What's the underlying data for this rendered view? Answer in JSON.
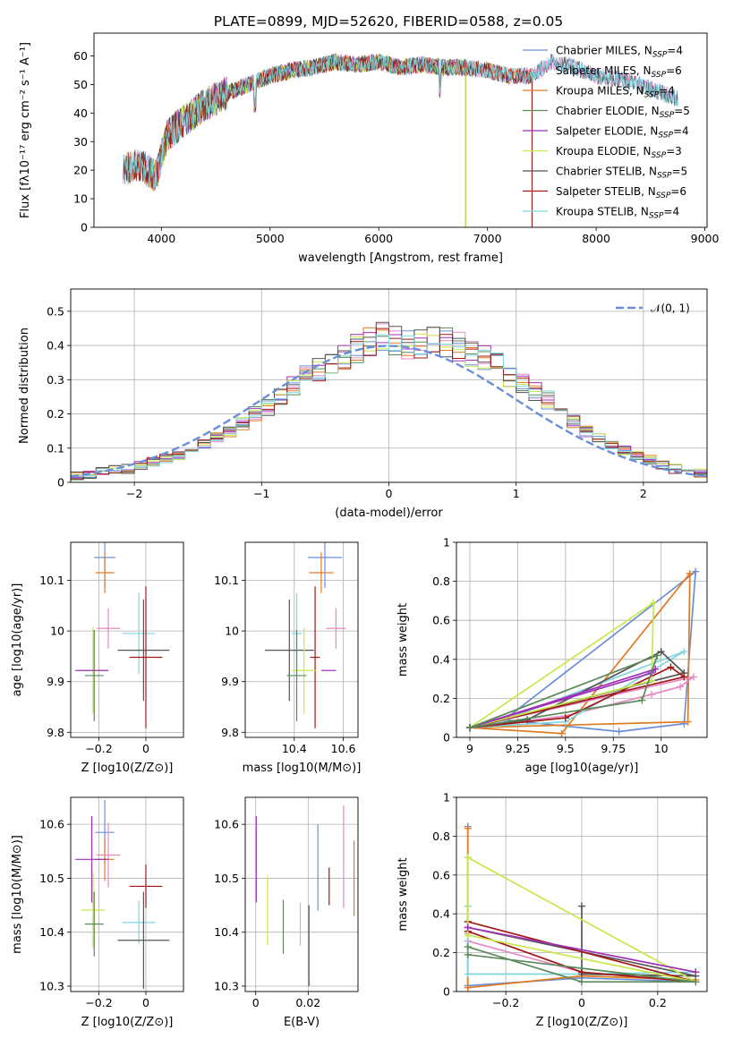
{
  "figure_title": "PLATE=0899, MJD=52620, FIBERID=0588, z=0.05",
  "colors": {
    "Chabrier MILES": "#6a8fd8",
    "Salpeter MILES": "#e68ac5",
    "Kroupa MILES": "#e07b22",
    "Chabrier ELODIE": "#5a8a5a",
    "Salpeter ELODIE": "#a030b8",
    "Kroupa ELODIE": "#c8e84a",
    "Chabrier STELIB": "#555555",
    "Salpeter STELIB": "#a01818",
    "Kroupa STELIB": "#7fd6dc"
  },
  "chart_data": [
    {
      "id": "spectrum",
      "type": "line",
      "title": "PLATE=0899, MJD=52620, FIBERID=0588, z=0.05",
      "xlabel": "wavelength [Angstrom, rest frame]",
      "ylabel": "Flux [fλ10⁻¹⁷ erg cm⁻² s⁻¹ A⁻¹]",
      "xlim": [
        3380,
        9020
      ],
      "ylim": [
        0,
        68
      ],
      "xticks": [
        4000,
        5000,
        6000,
        7000,
        8000,
        9000
      ],
      "yticks": [
        0,
        10,
        20,
        30,
        40,
        50,
        60
      ],
      "grid": false,
      "legend_position": "upper right",
      "series": [
        {
          "name": "Chabrier MILES",
          "legend_label": "Chabrier MILES, N_SSP=4",
          "x_range": [
            3650,
            8750
          ]
        },
        {
          "name": "Salpeter MILES",
          "legend_label": "Salpeter MILES, N_SSP=6",
          "x_range": [
            3650,
            8750
          ]
        },
        {
          "name": "Kroupa MILES",
          "legend_label": "Kroupa MILES, N_SSP=4",
          "x_range": [
            3650,
            7410
          ]
        },
        {
          "name": "Chabrier ELODIE",
          "legend_label": "Chabrier ELODIE, N_SSP=5",
          "x_range": [
            3900,
            6800
          ]
        },
        {
          "name": "Salpeter ELODIE",
          "legend_label": "Salpeter ELODIE, N_SSP=4",
          "x_range": [
            3900,
            6800
          ]
        },
        {
          "name": "Kroupa ELODIE",
          "legend_label": "Kroupa ELODIE, N_SSP=3",
          "x_range": [
            3900,
            6800
          ]
        },
        {
          "name": "Chabrier STELIB",
          "legend_label": "Chabrier STELIB, N_SSP=5",
          "x_range": [
            3650,
            8750
          ]
        },
        {
          "name": "Salpeter STELIB",
          "legend_label": "Salpeter STELIB, N_SSP=6",
          "x_range": [
            3650,
            7410
          ]
        },
        {
          "name": "Kroupa STELIB",
          "legend_label": "Kroupa STELIB, N_SSP=4",
          "x_range": [
            3650,
            8750
          ]
        }
      ],
      "continuum": {
        "x": [
          3650,
          3800,
          3950,
          4050,
          4200,
          4400,
          4600,
          4800,
          5000,
          5200,
          5400,
          5600,
          5800,
          6000,
          6200,
          6400,
          6600,
          6800,
          7000,
          7200,
          7400,
          7600,
          7800,
          8000,
          8200,
          8400,
          8600,
          8750
        ],
        "y": [
          20,
          22,
          18,
          32,
          37,
          43,
          47,
          50,
          53,
          55,
          56,
          58,
          57,
          58,
          56,
          57,
          56,
          56,
          55,
          53,
          53,
          58,
          56,
          53,
          52,
          50,
          47,
          45
        ]
      }
    },
    {
      "id": "residual-histogram",
      "type": "histogram",
      "xlabel": "(data-model)/error",
      "ylabel": "Normed distribution",
      "xlim": [
        -2.5,
        2.5
      ],
      "ylim": [
        0,
        0.565
      ],
      "xticks": [
        -2,
        -1,
        0,
        1,
        2
      ],
      "yticks": [
        0.0,
        0.1,
        0.2,
        0.3,
        0.4,
        0.5
      ],
      "grid": true,
      "legend_position": "upper right",
      "legend_label": "𝒩(0, 1)",
      "bin_width": 0.1,
      "bin_start": -2.5,
      "series_values": {
        "base": [
          0.02,
          0.025,
          0.03,
          0.035,
          0.04,
          0.05,
          0.06,
          0.07,
          0.08,
          0.09,
          0.11,
          0.13,
          0.15,
          0.17,
          0.2,
          0.22,
          0.25,
          0.28,
          0.31,
          0.33,
          0.35,
          0.37,
          0.39,
          0.41,
          0.42,
          0.41,
          0.4,
          0.41,
          0.42,
          0.41,
          0.4,
          0.38,
          0.36,
          0.34,
          0.31,
          0.29,
          0.27,
          0.24,
          0.21,
          0.18,
          0.15,
          0.13,
          0.11,
          0.095,
          0.08,
          0.065,
          0.05,
          0.04,
          0.035,
          0.025
        ]
      }
    },
    {
      "id": "age-vs-Z",
      "type": "scatter",
      "xlabel": "Z [log10(Z/Z⊙)]",
      "ylabel": "age  [log10(age/yr)]",
      "xlim": [
        -0.32,
        0.16
      ],
      "ylim": [
        9.79,
        10.175
      ],
      "xticks": [
        -0.2,
        0.0
      ],
      "yticks": [
        9.8,
        9.9,
        10.0,
        10.1
      ],
      "grid": true,
      "points": [
        {
          "series": "Chabrier MILES",
          "x": -0.175,
          "y": 10.145,
          "xerr": 0.045,
          "yerr": 0.06
        },
        {
          "series": "Kroupa MILES",
          "x": -0.175,
          "y": 10.115,
          "xerr": 0.04,
          "yerr": 0.04
        },
        {
          "series": "Salpeter MILES",
          "x": -0.16,
          "y": 10.005,
          "xerr": 0.05,
          "yerr": 0.04
        },
        {
          "series": "Kroupa STELIB",
          "x": -0.03,
          "y": 9.995,
          "xerr": 0.07,
          "yerr": 0.08
        },
        {
          "series": "Chabrier STELIB",
          "x": -0.01,
          "y": 9.962,
          "xerr": 0.11,
          "yerr": 0.1
        },
        {
          "series": "Salpeter STELIB",
          "x": 0.0,
          "y": 9.948,
          "xerr": 0.07,
          "yerr": 0.14
        },
        {
          "series": "Kroupa ELODIE",
          "x": -0.225,
          "y": 9.922,
          "xerr": 0.05,
          "yerr": 0.085
        },
        {
          "series": "Salpeter ELODIE",
          "x": -0.23,
          "y": 9.922,
          "xerr": 0.07,
          "yerr": 0.0
        },
        {
          "series": "Chabrier ELODIE",
          "x": -0.22,
          "y": 9.912,
          "xerr": 0.04,
          "yerr": 0.09
        }
      ]
    },
    {
      "id": "age-vs-mass",
      "type": "scatter",
      "xlabel": "mass [log10(M/M⊙)]",
      "ylabel": "",
      "xlim": [
        10.2,
        10.66
      ],
      "ylim": [
        9.79,
        10.175
      ],
      "xticks": [
        10.4,
        10.6
      ],
      "yticks": [
        9.8,
        9.9,
        10.0,
        10.1
      ],
      "grid": true,
      "points": [
        {
          "series": "Chabrier MILES",
          "x": 10.525,
          "y": 10.145,
          "xerr": 0.07,
          "yerr": 0.06
        },
        {
          "series": "Kroupa MILES",
          "x": 10.51,
          "y": 10.115,
          "xerr": 0.05,
          "yerr": 0.04
        },
        {
          "series": "Salpeter MILES",
          "x": 10.57,
          "y": 10.005,
          "xerr": 0.04,
          "yerr": 0.04
        },
        {
          "series": "Kroupa STELIB",
          "x": 10.41,
          "y": 9.995,
          "xerr": 0.02,
          "yerr": 0.08
        },
        {
          "series": "Chabrier STELIB",
          "x": 10.38,
          "y": 9.962,
          "xerr": 0.1,
          "yerr": 0.1
        },
        {
          "series": "Salpeter STELIB",
          "x": 10.485,
          "y": 9.948,
          "xerr": 0.02,
          "yerr": 0.14
        },
        {
          "series": "Kroupa ELODIE",
          "x": 10.44,
          "y": 9.922,
          "xerr": 0.05,
          "yerr": 0.085
        },
        {
          "series": "Salpeter ELODIE",
          "x": 10.54,
          "y": 9.922,
          "xerr": 0.03,
          "yerr": 0.0
        },
        {
          "series": "Chabrier ELODIE",
          "x": 10.41,
          "y": 9.912,
          "xerr": 0.04,
          "yerr": 0.09
        }
      ]
    },
    {
      "id": "weight-vs-age",
      "type": "line",
      "xlabel": "age  [log10(age/yr)]",
      "ylabel": "mass weight",
      "xlim": [
        8.93,
        10.24
      ],
      "ylim": [
        0,
        1
      ],
      "xticks": [
        9.0,
        9.25,
        9.5,
        9.75,
        10.0
      ],
      "yticks": [
        0.0,
        0.2,
        0.4,
        0.6,
        0.8,
        1.0
      ],
      "grid": true,
      "series": [
        {
          "name": "Chabrier MILES",
          "x": [
            9.18,
            9.78,
            10.12,
            10.18,
            9.18
          ],
          "y": [
            0.09,
            0.03,
            0.07,
            0.85,
            0.09
          ]
        },
        {
          "name": "Kroupa MILES",
          "x": [
            9.0,
            9.48,
            10.15,
            10.14,
            9.0
          ],
          "y": [
            0.05,
            0.02,
            0.84,
            0.08,
            0.05
          ]
        },
        {
          "name": "Salpeter MILES",
          "x": [
            9.0,
            9.5,
            9.95,
            10.1,
            10.17,
            9.0
          ],
          "y": [
            0.05,
            0.11,
            0.22,
            0.26,
            0.31,
            0.05
          ]
        },
        {
          "name": "Kroupa STELIB",
          "x": [
            9.0,
            9.5,
            10.12,
            9.18,
            9.0
          ],
          "y": [
            0.05,
            0.08,
            0.44,
            0.09,
            0.05
          ]
        },
        {
          "name": "Chabrier STELIB",
          "x": [
            9.0,
            9.3,
            10.0,
            10.12,
            9.0
          ],
          "y": [
            0.05,
            0.09,
            0.44,
            0.33,
            0.05
          ]
        },
        {
          "name": "Salpeter STELIB",
          "x": [
            9.0,
            9.5,
            10.05,
            10.12,
            9.0
          ],
          "y": [
            0.05,
            0.1,
            0.36,
            0.31,
            0.05
          ]
        },
        {
          "name": "Kroupa ELODIE",
          "x": [
            9.0,
            9.95,
            9.96,
            9.0
          ],
          "y": [
            0.05,
            0.29,
            0.69,
            0.05
          ]
        },
        {
          "name": "Salpeter ELODIE",
          "x": [
            9.0,
            9.95,
            9.97,
            9.0
          ],
          "y": [
            0.05,
            0.33,
            0.35,
            0.05
          ]
        },
        {
          "name": "Chabrier ELODIE",
          "x": [
            9.0,
            9.9,
            9.98,
            9.0
          ],
          "y": [
            0.05,
            0.19,
            0.42,
            0.05
          ]
        }
      ]
    },
    {
      "id": "mass-vs-Z",
      "type": "scatter",
      "xlabel": "Z [log10(Z/Z⊙)]",
      "ylabel": "mass [log10(M/M⊙)]",
      "xlim": [
        -0.32,
        0.16
      ],
      "ylim": [
        10.29,
        10.65
      ],
      "xticks": [
        -0.2,
        0.0
      ],
      "yticks": [
        10.3,
        10.4,
        10.5,
        10.6
      ],
      "grid": true,
      "points": [
        {
          "series": "Chabrier MILES",
          "x": -0.175,
          "y": 10.585,
          "xerr": 0.04,
          "yerr": 0.06
        },
        {
          "series": "Salpeter MILES",
          "x": -0.16,
          "y": 10.543,
          "xerr": 0.05,
          "yerr": 0.06
        },
        {
          "series": "Kroupa MILES",
          "x": -0.175,
          "y": 10.535,
          "xerr": 0.04,
          "yerr": 0.04
        },
        {
          "series": "Salpeter ELODIE",
          "x": -0.23,
          "y": 10.535,
          "xerr": 0.07,
          "yerr": 0.08
        },
        {
          "series": "Salpeter STELIB",
          "x": 0.0,
          "y": 10.485,
          "xerr": 0.07,
          "yerr": 0.04
        },
        {
          "series": "Kroupa ELODIE",
          "x": -0.225,
          "y": 10.441,
          "xerr": 0.05,
          "yerr": 0.07
        },
        {
          "series": "Kroupa STELIB",
          "x": -0.03,
          "y": 10.418,
          "xerr": 0.07,
          "yerr": 0.04
        },
        {
          "series": "Chabrier ELODIE",
          "x": -0.22,
          "y": 10.415,
          "xerr": 0.04,
          "yerr": 0.06
        },
        {
          "series": "Chabrier STELIB",
          "x": -0.01,
          "y": 10.385,
          "xerr": 0.11,
          "yerr": 0.09
        }
      ]
    },
    {
      "id": "mass-vs-ebv",
      "type": "errorbar",
      "xlabel": "E(B-V)",
      "ylabel": "",
      "xlim": [
        -0.004,
        0.039
      ],
      "ylim": [
        10.29,
        10.65
      ],
      "xticks": [
        0.0,
        0.02
      ],
      "yticks": [
        10.3,
        10.4,
        10.5,
        10.6
      ],
      "grid": true,
      "points": [
        {
          "series": "Salpeter ELODIE",
          "x": 0.0002,
          "y": 10.535,
          "yerr": 0.08
        },
        {
          "series": "Kroupa ELODIE",
          "x": 0.0045,
          "y": 10.441,
          "yerr": 0.065
        },
        {
          "series": "Chabrier ELODIE",
          "x": 0.0105,
          "y": 10.41,
          "yerr": 0.05
        },
        {
          "series": "Kroupa STELIB",
          "x": 0.017,
          "y": 10.415,
          "yerr": 0.04
        },
        {
          "series": "Chabrier STELIB",
          "x": 0.0203,
          "y": 10.375,
          "yerr": 0.075
        },
        {
          "series": "Chabrier MILES",
          "x": 0.0237,
          "y": 10.52,
          "yerr": 0.08
        },
        {
          "series": "Salpeter STELIB",
          "x": 0.028,
          "y": 10.485,
          "yerr": 0.035
        },
        {
          "series": "Salpeter MILES",
          "x": 0.0335,
          "y": 10.54,
          "yerr": 0.095
        },
        {
          "series": "Kroupa MILES",
          "x": 0.0375,
          "y": 10.5,
          "yerr": 0.07
        }
      ]
    },
    {
      "id": "weight-vs-Z",
      "type": "line",
      "xlabel": "Z [log10(Z/Z⊙)]",
      "ylabel": "mass weight",
      "xlim": [
        -0.33,
        0.33
      ],
      "ylim": [
        0,
        1
      ],
      "xticks": [
        -0.2,
        0.0,
        0.2
      ],
      "yticks": [
        0.0,
        0.2,
        0.4,
        0.6,
        0.8,
        1.0
      ],
      "grid": true,
      "series": [
        {
          "name": "Chabrier MILES",
          "x": [
            -0.3,
            -0.3,
            0.0,
            0.3
          ],
          "y": [
            0.85,
            0.03,
            0.07,
            0.05
          ]
        },
        {
          "name": "Kroupa MILES",
          "x": [
            -0.3,
            -0.3,
            0.0,
            0.3
          ],
          "y": [
            0.84,
            0.02,
            0.08,
            0.06
          ]
        },
        {
          "name": "Salpeter MILES",
          "x": [
            -0.3,
            -0.3,
            0.0,
            0.3
          ],
          "y": [
            0.3,
            0.26,
            0.1,
            0.05
          ]
        },
        {
          "name": "Kroupa STELIB",
          "x": [
            -0.3,
            -0.3,
            0.0,
            0.3
          ],
          "y": [
            0.44,
            0.09,
            0.09,
            0.1
          ]
        },
        {
          "name": "Chabrier STELIB",
          "x": [
            0.0,
            0.0,
            0.3,
            -0.3
          ],
          "y": [
            0.44,
            0.09,
            0.08,
            0.33
          ]
        },
        {
          "name": "Salpeter STELIB",
          "x": [
            -0.3,
            0.0,
            0.3,
            -0.3
          ],
          "y": [
            0.31,
            0.1,
            0.05,
            0.36
          ]
        },
        {
          "name": "Kroupa ELODIE",
          "x": [
            -0.3,
            -0.3,
            0.3,
            -0.3
          ],
          "y": [
            0.69,
            0.29,
            0.05,
            0.69
          ]
        },
        {
          "name": "Salpeter ELODIE",
          "x": [
            -0.3,
            0.3
          ],
          "y": [
            0.33,
            0.1
          ]
        },
        {
          "name": "Chabrier ELODIE",
          "x": [
            -0.3,
            0.0,
            0.3,
            -0.3
          ],
          "y": [
            0.23,
            0.05,
            0.05,
            0.19
          ]
        }
      ]
    }
  ]
}
